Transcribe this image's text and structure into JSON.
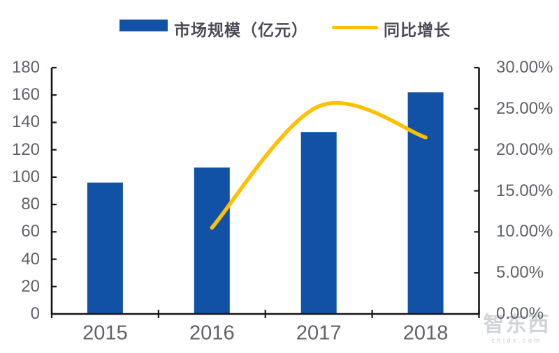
{
  "legend": {
    "bar_label": "市场规模（亿元）",
    "line_label": "同比增长"
  },
  "watermark": {
    "logo_text": "智东西",
    "domain_text": "zhidx.com"
  },
  "colors": {
    "bar": "#1151A6",
    "line": "#FFC000",
    "axis": "#161616",
    "tick_label": "#5f6269"
  },
  "chart_data": {
    "type": "bar",
    "title": "",
    "categories": [
      "2015",
      "2016",
      "2017",
      "2018"
    ],
    "series": [
      {
        "name": "市场规模（亿元）",
        "type": "bar",
        "axis": "left",
        "values": [
          96,
          107,
          133,
          162
        ]
      },
      {
        "name": "同比增长",
        "type": "line",
        "axis": "right",
        "values_percent": [
          null,
          10.5,
          25.3,
          21.5
        ]
      }
    ],
    "left_axis": {
      "min": 0,
      "max": 180,
      "step": 20,
      "tick_labels": [
        "180",
        "160",
        "140",
        "120",
        "100",
        "80",
        "60",
        "40",
        "20",
        "0"
      ]
    },
    "right_axis": {
      "min": 0,
      "max": 30,
      "step": 5,
      "tick_labels": [
        "30.00%",
        "25.00%",
        "20.00%",
        "15.00%",
        "10.00%",
        "5.00%",
        "0.00%"
      ]
    },
    "legend_position": "top",
    "grid": false
  }
}
